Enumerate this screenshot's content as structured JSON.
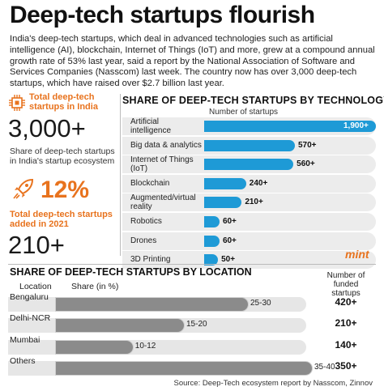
{
  "title": "Deep-tech startups flourish",
  "intro": "India's deep-tech startups, which deal in advanced technologies such as artificial intelligence (AI), blockchain, Internet of Things (IoT) and more, grew at a compound annual growth rate of 53% last year, said a report by the National Association of Software and Services Companies (Nasscom) last week. The country now has over 3,000 deep-tech startups, which have raised over $2.7 billion last year.",
  "stats": {
    "total_label": "Total deep-tech startups in India",
    "total_value": "3,000+",
    "share_label": "Share of deep-tech startups in India's startup ecosystem",
    "share_value": "12%",
    "added_label": "Total deep-tech startups added in 2021",
    "added_value": "210+"
  },
  "brand": "mint",
  "source": "Source: Deep-Tech ecosystem report by Nasscom, Zinnov",
  "colors": {
    "accent_orange": "#e8731e",
    "bar_blue": "#1e9ad6",
    "bar_grey": "#8b8b8b"
  },
  "chart_data": [
    {
      "type": "bar",
      "title": "SHARE OF DEEP-TECH STARTUPS BY TECHNOLOGY",
      "xlabel": "Number of startups",
      "categories": [
        "Artificial intelligence",
        "Big data & analytics",
        "Internet of Things (IoT)",
        "Blockchain",
        "Augmented/virtual reality",
        "Robotics",
        "Drones",
        "3D Printing"
      ],
      "values": [
        1900,
        570,
        560,
        240,
        210,
        60,
        60,
        50
      ],
      "value_labels": [
        "1,900+",
        "570+",
        "560+",
        "240+",
        "210+",
        "60+",
        "60+",
        "50+"
      ]
    },
    {
      "type": "bar",
      "title": "SHARE OF DEEP-TECH STARTUPS BY LOCATION",
      "xlabel": "Share (in %)",
      "category_header": "Location",
      "funded_header": "Number of funded startups",
      "categories": [
        "Bengaluru",
        "Delhi-NCR",
        "Mumbai",
        "Others"
      ],
      "ranges": [
        [
          25,
          30
        ],
        [
          15,
          20
        ],
        [
          10,
          12
        ],
        [
          35,
          40
        ]
      ],
      "range_labels": [
        "25-30",
        "15-20",
        "10-12",
        "35-40"
      ],
      "funded": [
        "420+",
        "210+",
        "140+",
        "350+"
      ]
    }
  ]
}
